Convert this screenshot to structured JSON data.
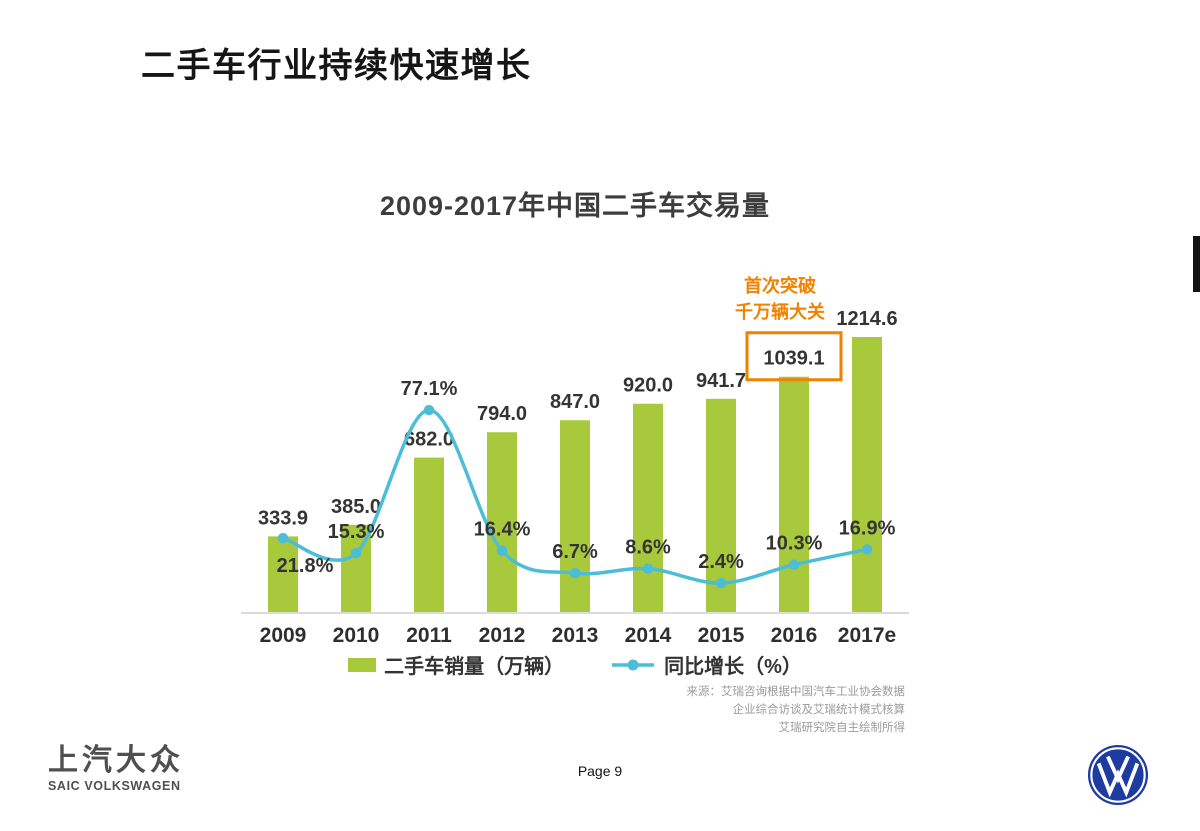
{
  "slide": {
    "title": "二手车行业持续快速增长",
    "page_label": "Page 9"
  },
  "footer": {
    "brand_cn": "上汽大众",
    "brand_en": "SAIC VOLKSWAGEN",
    "vw_logo_color": "#1d3ba0"
  },
  "chart_data": {
    "type": "bar+line",
    "title": "2009-2017年中国二手车交易量",
    "categories": [
      "2009",
      "2010",
      "2011",
      "2012",
      "2013",
      "2014",
      "2015",
      "2016",
      "2017e"
    ],
    "series": [
      {
        "name": "二手车销量（万辆）",
        "type": "bar",
        "color": "#a8c93c",
        "values": [
          333.9,
          385.0,
          682.0,
          794.0,
          847.0,
          920.0,
          941.7,
          1039.1,
          1214.6
        ]
      },
      {
        "name": "同比增长（%）",
        "type": "line",
        "color": "#4bbdd7",
        "values": [
          21.8,
          15.3,
          77.1,
          16.4,
          6.7,
          8.6,
          2.4,
          10.3,
          16.9
        ]
      }
    ],
    "annotation": {
      "text_lines": [
        "首次突破",
        "千万辆大关"
      ],
      "color": "#f08200",
      "box_index": 7
    },
    "pct_label_sides": [
      "below",
      "above",
      "above",
      "above",
      "above",
      "above",
      "above",
      "above",
      "above"
    ],
    "bar_axis_max": 1300,
    "grid": false,
    "legend_position": "bottom",
    "source_lines": [
      "来源：艾瑞咨询根据中国汽车工业协会数据",
      "企业综合访谈及艾瑞统计模式核算",
      "艾瑞研究院自主绘制所得"
    ]
  }
}
